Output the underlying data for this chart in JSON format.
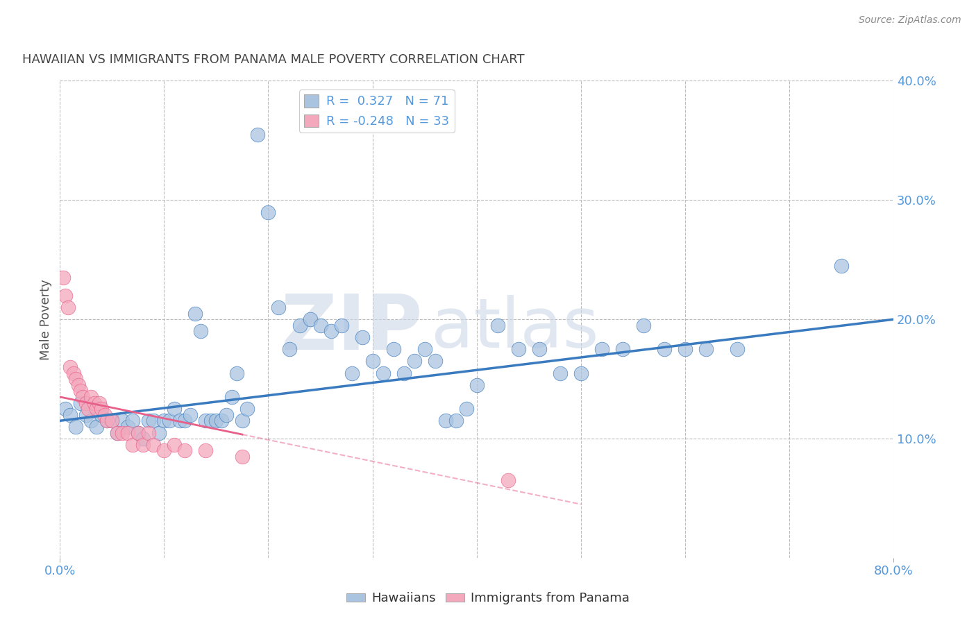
{
  "title": "HAWAIIAN VS IMMIGRANTS FROM PANAMA MALE POVERTY CORRELATION CHART",
  "source": "Source: ZipAtlas.com",
  "ylabel": "Male Poverty",
  "xlim": [
    0.0,
    0.8
  ],
  "ylim": [
    0.0,
    0.4
  ],
  "yticks_right": [
    0.1,
    0.2,
    0.3,
    0.4
  ],
  "ytick_labels_right": [
    "10.0%",
    "20.0%",
    "30.0%",
    "40.0%"
  ],
  "hawaiians_R": 0.327,
  "hawaiians_N": 71,
  "panama_R": -0.248,
  "panama_N": 33,
  "hawaiians_color": "#aac4e0",
  "panama_color": "#f4a8bc",
  "line_hawaiians_color": "#3a7bbf",
  "line_panama_color": "#e8608a",
  "watermark": "ZIPatlas",
  "watermark_color": "#ccd8e8",
  "background_color": "#ffffff",
  "grid_color": "#bbbbbb",
  "title_color": "#444444",
  "source_color": "#888888",
  "tick_color": "#5599dd",
  "hawaiians_x": [
    0.005,
    0.01,
    0.015,
    0.02,
    0.025,
    0.03,
    0.035,
    0.04,
    0.045,
    0.05,
    0.055,
    0.06,
    0.065,
    0.07,
    0.075,
    0.08,
    0.085,
    0.09,
    0.095,
    0.1,
    0.105,
    0.11,
    0.115,
    0.12,
    0.125,
    0.13,
    0.135,
    0.14,
    0.145,
    0.15,
    0.155,
    0.16,
    0.165,
    0.17,
    0.175,
    0.18,
    0.19,
    0.2,
    0.21,
    0.22,
    0.23,
    0.24,
    0.25,
    0.26,
    0.27,
    0.28,
    0.29,
    0.3,
    0.31,
    0.32,
    0.33,
    0.34,
    0.35,
    0.36,
    0.37,
    0.38,
    0.39,
    0.4,
    0.42,
    0.44,
    0.46,
    0.48,
    0.5,
    0.52,
    0.54,
    0.56,
    0.58,
    0.6,
    0.62,
    0.65,
    0.75
  ],
  "hawaiians_y": [
    0.125,
    0.12,
    0.11,
    0.13,
    0.12,
    0.115,
    0.11,
    0.12,
    0.115,
    0.115,
    0.105,
    0.115,
    0.11,
    0.115,
    0.105,
    0.1,
    0.115,
    0.115,
    0.105,
    0.115,
    0.115,
    0.125,
    0.115,
    0.115,
    0.12,
    0.205,
    0.19,
    0.115,
    0.115,
    0.115,
    0.115,
    0.12,
    0.135,
    0.155,
    0.115,
    0.125,
    0.355,
    0.29,
    0.21,
    0.175,
    0.195,
    0.2,
    0.195,
    0.19,
    0.195,
    0.155,
    0.185,
    0.165,
    0.155,
    0.175,
    0.155,
    0.165,
    0.175,
    0.165,
    0.115,
    0.115,
    0.125,
    0.145,
    0.195,
    0.175,
    0.175,
    0.155,
    0.155,
    0.175,
    0.175,
    0.195,
    0.175,
    0.175,
    0.175,
    0.175,
    0.245
  ],
  "panama_x": [
    0.003,
    0.005,
    0.008,
    0.01,
    0.013,
    0.015,
    0.018,
    0.02,
    0.022,
    0.025,
    0.027,
    0.03,
    0.033,
    0.035,
    0.038,
    0.04,
    0.043,
    0.045,
    0.05,
    0.055,
    0.06,
    0.065,
    0.07,
    0.075,
    0.08,
    0.085,
    0.09,
    0.1,
    0.11,
    0.12,
    0.14,
    0.175,
    0.43
  ],
  "panama_y": [
    0.235,
    0.22,
    0.21,
    0.16,
    0.155,
    0.15,
    0.145,
    0.14,
    0.135,
    0.13,
    0.125,
    0.135,
    0.13,
    0.125,
    0.13,
    0.125,
    0.12,
    0.115,
    0.115,
    0.105,
    0.105,
    0.105,
    0.095,
    0.105,
    0.095,
    0.105,
    0.095,
    0.09,
    0.095,
    0.09,
    0.09,
    0.085,
    0.065
  ],
  "line_h_x0": 0.0,
  "line_h_x1": 0.8,
  "line_h_y0": 0.115,
  "line_h_y1": 0.2,
  "line_p_x0": 0.0,
  "line_p_x1": 0.5,
  "line_p_y0": 0.135,
  "line_p_y1": 0.045
}
